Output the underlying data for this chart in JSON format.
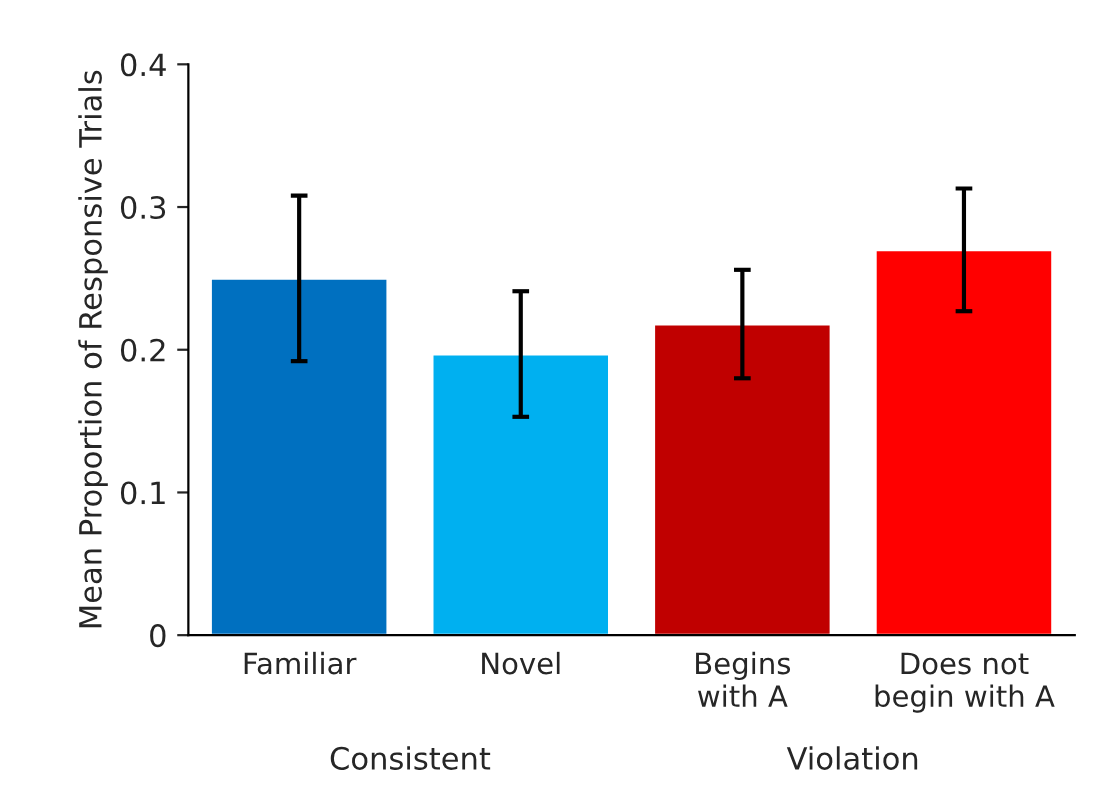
{
  "chart_data": {
    "type": "bar",
    "ylabel": "Mean Proportion of Responsive Trials",
    "categories": [
      "Familiar",
      "Novel",
      "Begins\nwith A",
      "Does not\nbegin with A"
    ],
    "values": [
      0.25,
      0.197,
      0.218,
      0.27
    ],
    "colors": [
      "#0070c0",
      "#00b0f0",
      "#c00000",
      "#ff0000"
    ],
    "errors": [
      0.058,
      0.044,
      0.038,
      0.043
    ],
    "ylim": [
      0,
      0.4
    ],
    "yticks": [
      0,
      0.1,
      0.2,
      0.3,
      0.4
    ],
    "grid": false,
    "legend": false,
    "annotations": [
      "Consistent",
      "Violation"
    ]
  }
}
